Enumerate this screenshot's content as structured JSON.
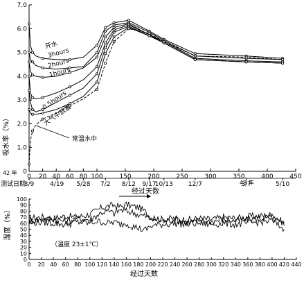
{
  "chart_data": [
    {
      "type": "line",
      "ylabel": "吸水率（%）",
      "xlabel": "经过天数",
      "xlim": [
        0,
        450
      ],
      "ylim": [
        0,
        7.0
      ],
      "x_ticks": [
        0,
        20,
        40,
        60,
        80,
        100,
        150,
        200,
        250,
        300,
        350,
        400,
        450
      ],
      "y_ticks": [
        "0",
        "1.0",
        "2.0",
        "3.0",
        "4.0",
        "5.0",
        "6.0",
        "7.0"
      ],
      "date_row_label": "测试日期",
      "year_start_label": "42 年",
      "year_mid_label": "43 年",
      "date_ticks": [
        {
          "x": 0,
          "label": "3/9"
        },
        {
          "x": 41,
          "label": "4/19"
        },
        {
          "x": 80,
          "label": "5/28"
        },
        {
          "x": 115,
          "label": "7/2"
        },
        {
          "x": 156,
          "label": "8/12"
        },
        {
          "x": 192,
          "label": "9/17"
        },
        {
          "x": 218,
          "label": "10/13"
        },
        {
          "x": 273,
          "label": "12/7"
        },
        {
          "x": 363,
          "label": "3/7"
        },
        {
          "x": 427,
          "label": "5/10"
        }
      ],
      "series": [
        {
          "name": "开水",
          "x": [
            0,
            2,
            5,
            10,
            20,
            40,
            60,
            80,
            100,
            115,
            130,
            156,
            192,
            218,
            273,
            363,
            427
          ],
          "y": [
            6.2,
            5.3,
            5.0,
            4.85,
            4.75,
            4.7,
            4.7,
            4.8,
            5.3,
            6.05,
            6.25,
            6.35,
            5.9,
            5.55,
            4.95,
            4.85,
            4.75
          ]
        },
        {
          "name": "3hours",
          "x": [
            0,
            2,
            5,
            10,
            20,
            40,
            60,
            80,
            100,
            115,
            130,
            156,
            192,
            218,
            273,
            363,
            427
          ],
          "y": [
            5.0,
            4.7,
            4.6,
            4.45,
            4.35,
            4.3,
            4.35,
            4.4,
            5.0,
            5.9,
            6.15,
            6.25,
            5.85,
            5.5,
            4.85,
            4.75,
            4.7
          ]
        },
        {
          "name": "2hours",
          "x": [
            0,
            2,
            5,
            10,
            20,
            40,
            60,
            80,
            100,
            115,
            130,
            156,
            192,
            218,
            273,
            363,
            427
          ],
          "y": [
            4.6,
            4.2,
            4.05,
            4.0,
            3.95,
            4.0,
            4.15,
            4.35,
            4.8,
            5.65,
            6.05,
            6.2,
            5.75,
            5.45,
            4.75,
            4.65,
            4.6
          ]
        },
        {
          "name": "1hours",
          "x": [
            0,
            2,
            5,
            10,
            20,
            40,
            60,
            80,
            100,
            115,
            130,
            156,
            192,
            218,
            273,
            363,
            427
          ],
          "y": [
            4.0,
            3.3,
            3.1,
            3.05,
            3.1,
            3.3,
            3.55,
            3.85,
            4.4,
            5.4,
            5.95,
            6.15,
            5.75,
            5.4,
            4.7,
            4.6,
            4.55
          ]
        },
        {
          "name": "0.5hours",
          "x": [
            0,
            2,
            5,
            10,
            20,
            40,
            60,
            80,
            100,
            115,
            130,
            156,
            192,
            218,
            273,
            363,
            427
          ],
          "y": [
            3.4,
            2.9,
            2.6,
            2.5,
            2.6,
            2.9,
            3.2,
            3.5,
            4.1,
            5.2,
            5.85,
            6.1,
            5.7,
            5.4,
            4.7,
            4.6,
            4.55
          ]
        },
        {
          "name": "大气中放置",
          "x": [
            0,
            2,
            5,
            10,
            20,
            40,
            60,
            80,
            100,
            115,
            130,
            156,
            192,
            218,
            273,
            363,
            427
          ],
          "y": [
            2.6,
            2.45,
            2.4,
            2.4,
            2.45,
            2.6,
            2.85,
            3.15,
            3.75,
            4.95,
            5.65,
            6.05,
            5.7,
            5.4,
            4.7,
            4.6,
            4.55
          ]
        },
        {
          "name": "常温水中",
          "x": [
            0,
            2,
            5,
            10,
            20,
            40,
            60,
            80,
            100,
            115,
            130,
            156,
            192,
            218,
            273,
            363,
            427
          ],
          "y": [
            0.3,
            1.3,
            1.7,
            1.95,
            2.2,
            2.45,
            2.75,
            3.05,
            3.45,
            4.55,
            5.45,
            6.0,
            5.8,
            5.45,
            4.85,
            4.8,
            4.7
          ]
        }
      ]
    },
    {
      "type": "line",
      "ylabel": "湿度（%）",
      "xlabel": "经过天数",
      "annotation": "（温度 23±1℃）",
      "xlim": [
        0,
        440
      ],
      "ylim": [
        0,
        100
      ],
      "x_ticks": [
        0,
        20,
        40,
        60,
        80,
        100,
        120,
        140,
        160,
        180,
        200,
        220,
        240,
        260,
        280,
        300,
        320,
        340,
        360,
        380,
        400,
        420,
        440
      ],
      "y_ticks": [
        0,
        10,
        20,
        30,
        40,
        50,
        60,
        70,
        80,
        90,
        100
      ],
      "series": [
        {
          "name": "",
          "x": [
            0,
            20,
            40,
            60,
            80,
            100,
            110,
            120,
            130,
            140,
            150,
            160,
            170,
            180,
            190,
            200,
            220,
            240,
            260,
            280,
            300,
            320,
            340,
            360,
            380,
            400,
            420
          ],
          "y": [
            68,
            70,
            68,
            72,
            70,
            75,
            80,
            86,
            88,
            90,
            87,
            91,
            88,
            86,
            80,
            70,
            66,
            68,
            65,
            68,
            66,
            70,
            68,
            71,
            72,
            74,
            60
          ]
        },
        {
          "name": "",
          "x": [
            0,
            20,
            40,
            60,
            80,
            100,
            110,
            120,
            130,
            140,
            150,
            160,
            170,
            180,
            190,
            200,
            220,
            240,
            260,
            280,
            300,
            320,
            340,
            360,
            380,
            400,
            420
          ],
          "y": [
            64,
            66,
            67,
            63,
            68,
            66,
            72,
            78,
            80,
            76,
            82,
            80,
            78,
            74,
            72,
            68,
            64,
            66,
            62,
            64,
            63,
            66,
            64,
            66,
            68,
            70,
            56
          ]
        },
        {
          "name": "",
          "x": [
            0,
            20,
            40,
            60,
            80,
            100,
            110,
            120,
            130,
            140,
            150,
            160,
            170,
            180,
            190,
            200,
            220,
            240,
            260,
            280,
            300,
            320,
            340,
            360,
            380,
            400,
            420
          ],
          "y": [
            60,
            62,
            60,
            58,
            62,
            60,
            63,
            62,
            60,
            62,
            58,
            60,
            55,
            52,
            48,
            55,
            58,
            60,
            58,
            60,
            58,
            60,
            58,
            60,
            62,
            64,
            50
          ]
        }
      ]
    }
  ]
}
